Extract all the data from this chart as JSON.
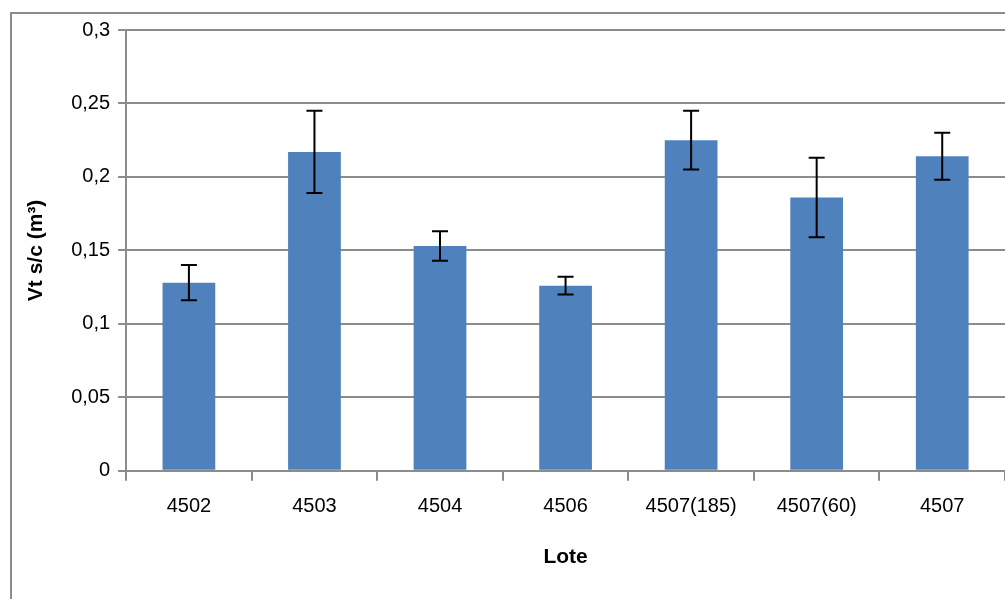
{
  "chart_data": {
    "type": "bar",
    "xlabel": "Lote",
    "ylabel": "Vt s/c (m³)",
    "categories": [
      "4502",
      "4503",
      "4504",
      "4506",
      "4507(185)",
      "4507(60)",
      "4507"
    ],
    "values": [
      0.128,
      0.217,
      0.153,
      0.126,
      0.225,
      0.186,
      0.214
    ],
    "errors": [
      0.012,
      0.028,
      0.01,
      0.006,
      0.02,
      0.027,
      0.016
    ],
    "color": "#4f81bd",
    "ylim": [
      0,
      0.3
    ],
    "yticks": [
      {
        "value": 0,
        "label": "0"
      },
      {
        "value": 0.05,
        "label": "0,05"
      },
      {
        "value": 0.1,
        "label": "0,1"
      },
      {
        "value": 0.15,
        "label": "0,15"
      },
      {
        "value": 0.2,
        "label": "0,2"
      },
      {
        "value": 0.25,
        "label": "0,25"
      },
      {
        "value": 0.3,
        "label": "0,3"
      }
    ],
    "grid": "y",
    "legend": false
  }
}
